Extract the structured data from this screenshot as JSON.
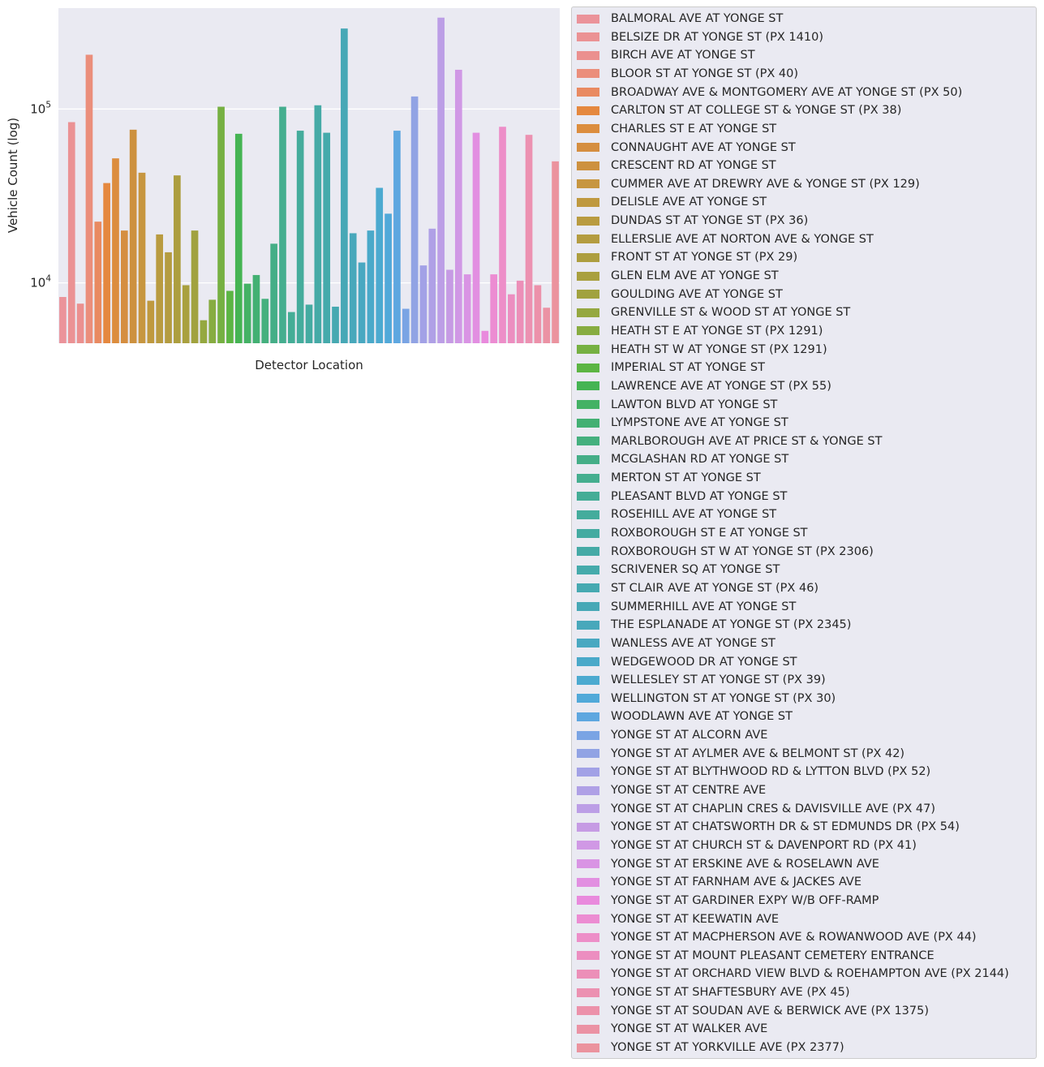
{
  "chart_data": {
    "type": "bar",
    "xlabel": "Detector Location",
    "ylabel": "Vehicle Count (log)",
    "yscale": "log",
    "ylim": [
      4500,
      380000
    ],
    "yticks": [
      {
        "value": 10000,
        "base": "10",
        "exp": "4"
      },
      {
        "value": 100000,
        "base": "10",
        "exp": "5"
      }
    ],
    "grid": true,
    "legend_position": "outside-right",
    "categories": [
      "BALMORAL AVE AT YONGE ST",
      "BELSIZE DR AT YONGE ST (PX 1410)",
      "BIRCH AVE AT YONGE ST",
      "BLOOR ST AT YONGE ST (PX 40)",
      "BROADWAY AVE & MONTGOMERY AVE AT YONGE ST (PX 50)",
      "CARLTON ST AT COLLEGE ST & YONGE ST (PX 38)",
      "CHARLES ST E AT YONGE ST",
      "CONNAUGHT AVE AT YONGE ST",
      "CRESCENT RD AT YONGE ST",
      "CUMMER AVE AT DREWRY AVE & YONGE ST (PX 129)",
      "DELISLE AVE AT YONGE ST",
      "DUNDAS ST AT YONGE ST (PX 36)",
      "ELLERSLIE AVE AT NORTON AVE & YONGE ST",
      "FRONT ST AT YONGE ST (PX 29)",
      "GLEN ELM AVE AT YONGE ST",
      "GOULDING AVE AT YONGE ST",
      "GRENVILLE ST & WOOD ST AT YONGE ST",
      "HEATH ST E AT YONGE ST (PX 1291)",
      "HEATH ST W AT YONGE ST (PX 1291)",
      "IMPERIAL ST AT YONGE ST",
      "LAWRENCE AVE AT YONGE ST (PX 55)",
      "LAWTON BLVD AT YONGE ST",
      "LYMPSTONE AVE AT YONGE ST",
      "MARLBOROUGH AVE AT PRICE ST & YONGE ST",
      "MCGLASHAN RD AT YONGE ST",
      "MERTON ST AT YONGE ST",
      "PLEASANT BLVD AT YONGE ST",
      "ROSEHILL AVE AT YONGE ST",
      "ROXBOROUGH ST E AT YONGE ST",
      "ROXBOROUGH ST W AT YONGE ST (PX 2306)",
      "SCRIVENER SQ AT YONGE ST",
      "ST CLAIR AVE AT YONGE ST (PX 46)",
      "SUMMERHILL AVE AT YONGE ST",
      "THE ESPLANADE AT YONGE ST (PX 2345)",
      "WANLESS AVE AT YONGE ST",
      "WEDGEWOOD DR AT YONGE ST",
      "WELLESLEY ST AT YONGE ST (PX 39)",
      "WELLINGTON ST AT YONGE ST (PX 30)",
      "WOODLAWN AVE AT YONGE ST",
      "YONGE ST AT ALCORN AVE",
      "YONGE ST AT AYLMER AVE & BELMONT ST (PX 42)",
      "YONGE ST AT BLYTHWOOD RD & LYTTON BLVD (PX 52)",
      "YONGE ST AT CENTRE AVE",
      "YONGE ST AT CHAPLIN CRES & DAVISVILLE AVE (PX 47)",
      "YONGE ST AT CHATSWORTH DR & ST EDMUNDS DR (PX 54)",
      "YONGE ST AT CHURCH ST & DAVENPORT RD (PX 41)",
      "YONGE ST AT ERSKINE AVE & ROSELAWN AVE",
      "YONGE ST AT FARNHAM AVE & JACKES AVE",
      "YONGE ST AT GARDINER EXPY W/B OFF-RAMP",
      "YONGE ST AT KEEWATIN AVE",
      "YONGE ST AT MACPHERSON AVE & ROWANWOOD AVE (PX 44)",
      "YONGE ST AT MOUNT PLEASANT CEMETERY ENTRANCE",
      "YONGE ST AT ORCHARD VIEW BLVD & ROEHAMPTON AVE (PX 2144)",
      "YONGE ST AT SHAFTESBURY AVE (PX 45)",
      "YONGE ST AT SOUDAN AVE & BERWICK AVE (PX 1375)",
      "YONGE ST AT WALKER AVE",
      "YONGE ST AT YORKVILLE AVE (PX 2377)"
    ],
    "values": [
      8300,
      84000,
      7600,
      205000,
      22500,
      37500,
      52000,
      20000,
      76000,
      43000,
      7900,
      19000,
      15000,
      41500,
      9700,
      20000,
      6100,
      8000,
      103000,
      9000,
      72000,
      9900,
      11100,
      8100,
      16800,
      103000,
      6800,
      75000,
      7500,
      105000,
      73000,
      7300,
      290000,
      19300,
      13100,
      20000,
      35200,
      25000,
      75000,
      7100,
      118000,
      12600,
      20500,
      335000,
      11900,
      168000,
      11200,
      73000,
      5300,
      11200,
      79000,
      8600,
      10300,
      71000,
      9700,
      7200,
      50000
    ],
    "colors": [
      "#eb939a",
      "#eb9294",
      "#eb908f",
      "#eb8e7b",
      "#e98a61",
      "#e5883f",
      "#dc8d3e",
      "#d58e40",
      "#cd913f",
      "#c79640",
      "#bf993f",
      "#b99b40",
      "#b49c40",
      "#ad9e3f",
      "#a9a03f",
      "#a1a23f",
      "#95a840",
      "#87ac41",
      "#76b042",
      "#5cb543",
      "#45b453",
      "#44b265",
      "#43b073",
      "#45b07e",
      "#45ae87",
      "#45ae8f",
      "#44ad96",
      "#44ac9c",
      "#44aba1",
      "#45aaa6",
      "#45aaab",
      "#46a9b1",
      "#47a8b6",
      "#48a8bb",
      "#49a8c1",
      "#4aa9c9",
      "#4caad0",
      "#51a9d9",
      "#5ea7e0",
      "#7aa4e4",
      "#91a3e4",
      "#a2a1e6",
      "#afa0e6",
      "#bc9ee6",
      "#c69be4",
      "#d098e5",
      "#d994e4",
      "#e28fe1",
      "#e98add",
      "#ec8cd2",
      "#ed8ec8",
      "#ec8ec0",
      "#ec8fb8",
      "#ec91b1",
      "#ec91aa",
      "#eb92a4",
      "#eb939e"
    ]
  }
}
